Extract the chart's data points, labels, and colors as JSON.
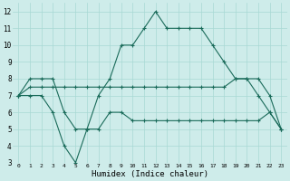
{
  "bg_color": "#ceecea",
  "grid_color": "#a8d8d4",
  "line_color": "#1a6b5a",
  "x_label": "Humidex (Indice chaleur)",
  "ylim": [
    3,
    12.5
  ],
  "xlim": [
    -0.5,
    23.5
  ],
  "yticks": [
    3,
    4,
    5,
    6,
    7,
    8,
    9,
    10,
    11,
    12
  ],
  "xticks": [
    0,
    1,
    2,
    3,
    4,
    5,
    6,
    7,
    8,
    9,
    10,
    11,
    12,
    13,
    14,
    15,
    16,
    17,
    18,
    19,
    20,
    21,
    22,
    23
  ],
  "line1_y": [
    7,
    8,
    8,
    8,
    6,
    5,
    5,
    7,
    8,
    10,
    10,
    11,
    12,
    11,
    11,
    11,
    11,
    10,
    9,
    8,
    8,
    7,
    6,
    5
  ],
  "line2_y": [
    7,
    7.5,
    7.5,
    7.5,
    7.5,
    7.5,
    7.5,
    7.5,
    7.5,
    7.5,
    7.5,
    7.5,
    7.5,
    7.5,
    7.5,
    7.5,
    7.5,
    7.5,
    7.5,
    8,
    8,
    8,
    7,
    5
  ],
  "line3_y": [
    7,
    7,
    7,
    6,
    4,
    3,
    5,
    5,
    6,
    6,
    5.5,
    5.5,
    5.5,
    5.5,
    5.5,
    5.5,
    5.5,
    5.5,
    5.5,
    5.5,
    5.5,
    5.5,
    6,
    5
  ]
}
